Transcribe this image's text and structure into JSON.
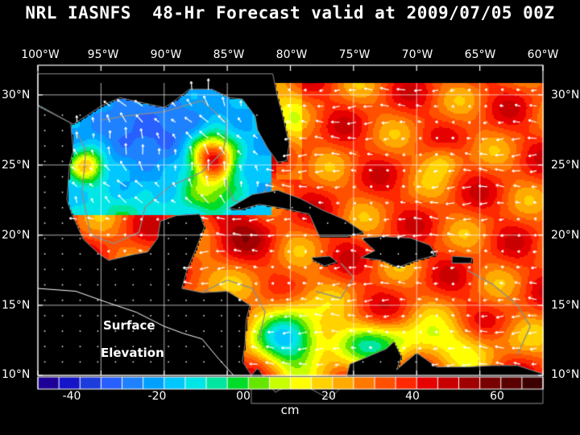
{
  "title": "NRL IASNFS  48-Hr Forecast valid at 2009/07/05 00Z",
  "lon_labels": [
    "100°W",
    "95°W",
    "90°W",
    "85°W",
    "80°W",
    "75°W",
    "70°W",
    "65°W",
    "60°W"
  ],
  "lat_labels": [
    "30°N",
    "25°N",
    "20°N",
    "15°N",
    "10°N"
  ],
  "overlay": {
    "line1": "Surface",
    "line2": "Elevation"
  },
  "colorbar": {
    "ticks": [
      "-40",
      "-20",
      "00",
      "20",
      "40",
      "60"
    ],
    "unit": "cm",
    "range": [
      -48,
      70
    ],
    "colors": [
      "#1e0096",
      "#1414c8",
      "#1c3cdc",
      "#2860ff",
      "#1e82ff",
      "#00a0ff",
      "#00c8ff",
      "#00e6e6",
      "#00e6a0",
      "#00dc28",
      "#64e600",
      "#c8ff00",
      "#ffff00",
      "#ffd200",
      "#ffaa00",
      "#ff7800",
      "#ff5000",
      "#ff2800",
      "#e60000",
      "#c80000",
      "#a00000",
      "#780000",
      "#5a0000",
      "#3c0000"
    ]
  },
  "colors": {
    "background": "#000000",
    "land": "#000000",
    "grid": "#ffffff",
    "bathy": "#8c8c8c"
  },
  "map_extent": {
    "lon": [
      -100,
      -60
    ],
    "lat": [
      10,
      31
    ]
  }
}
